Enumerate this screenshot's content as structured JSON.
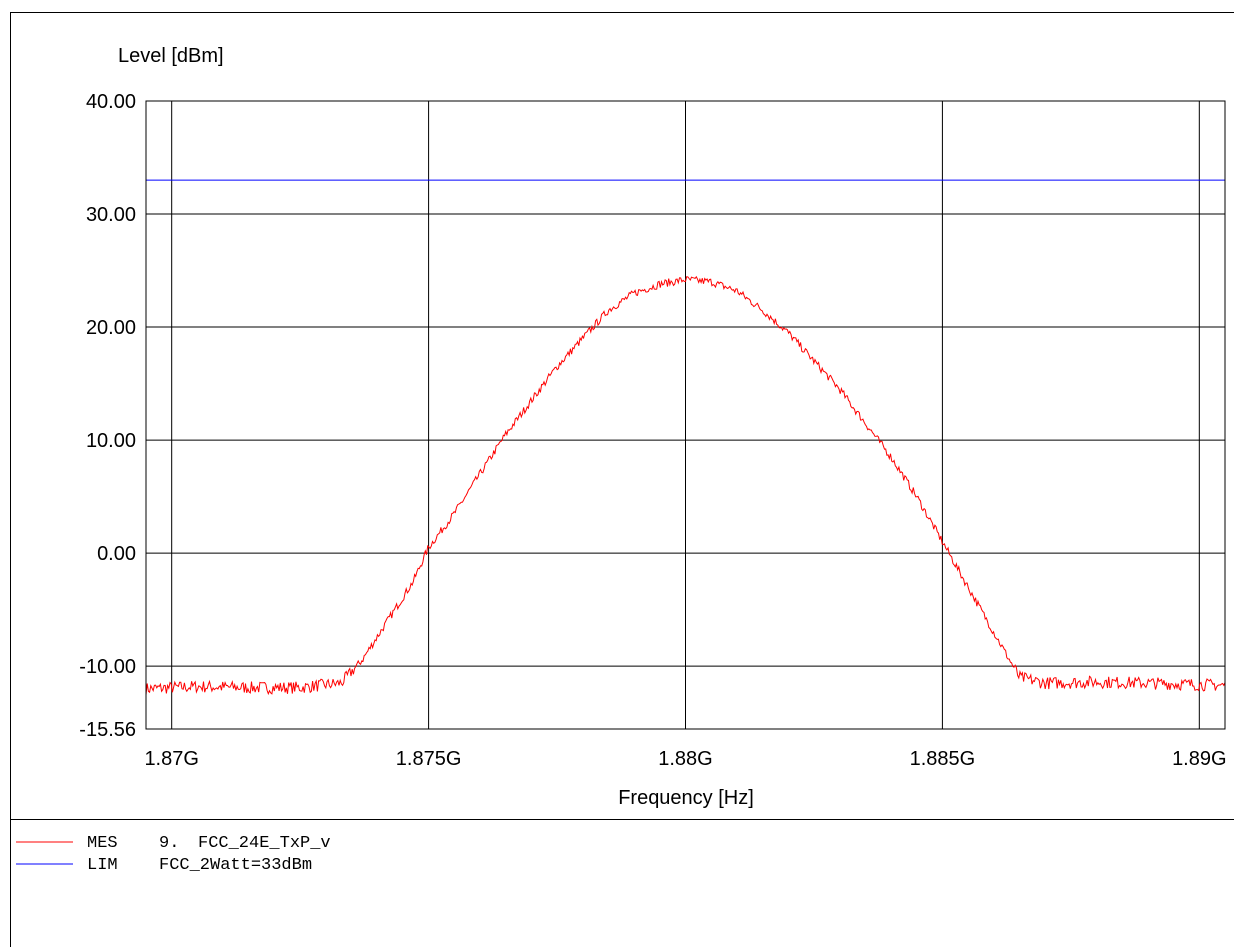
{
  "chart_data": {
    "type": "line",
    "title": "",
    "ylabel": "Level [dBm]",
    "xlabel": "Frequency [Hz]",
    "xlim": [
      1.8695,
      1.8905
    ],
    "ylim": [
      -15.56,
      40.0
    ],
    "x_unit_multiplier": "G",
    "xticks": [
      1.87,
      1.875,
      1.88,
      1.885,
      1.89
    ],
    "xtick_labels": [
      "1.87G",
      "1.875G",
      "1.88G",
      "1.885G",
      "1.89G"
    ],
    "yticks": [
      40.0,
      30.0,
      20.0,
      10.0,
      0.0,
      -10.0,
      -15.56
    ],
    "ytick_labels": [
      "40.00",
      "30.00",
      "20.00",
      "10.00",
      "0.00",
      "-10.00",
      "-15.56"
    ],
    "grid": true,
    "series": [
      {
        "name": "FCC_24E_TxP_v",
        "legend_tag": "MES",
        "legend_prefix": "9.",
        "color": "#ff0000",
        "x": [
          1.8695,
          1.8705,
          1.8715,
          1.8725,
          1.8733,
          1.8737,
          1.8742,
          1.8747,
          1.875,
          1.8755,
          1.876,
          1.8765,
          1.877,
          1.8775,
          1.878,
          1.8785,
          1.879,
          1.8795,
          1.88,
          1.8805,
          1.881,
          1.8815,
          1.882,
          1.8825,
          1.883,
          1.8835,
          1.884,
          1.8845,
          1.885,
          1.8855,
          1.886,
          1.8865,
          1.887,
          1.888,
          1.889,
          1.8905
        ],
        "y": [
          -12.0,
          -11.8,
          -11.9,
          -11.9,
          -11.5,
          -9.5,
          -6.0,
          -2.5,
          0.5,
          3.5,
          7.0,
          10.5,
          13.5,
          16.5,
          19.0,
          21.5,
          23.0,
          23.8,
          24.2,
          24.0,
          23.2,
          21.5,
          19.5,
          17.0,
          14.5,
          11.5,
          8.5,
          5.0,
          1.0,
          -3.0,
          -7.0,
          -11.0,
          -11.5,
          -11.4,
          -11.5,
          -11.7
        ]
      },
      {
        "name": "FCC_2Watt=33dBm",
        "legend_tag": "LIM",
        "color": "#0000ff",
        "x": [
          1.8695,
          1.8905
        ],
        "y": [
          33.0,
          33.0
        ]
      }
    ]
  }
}
